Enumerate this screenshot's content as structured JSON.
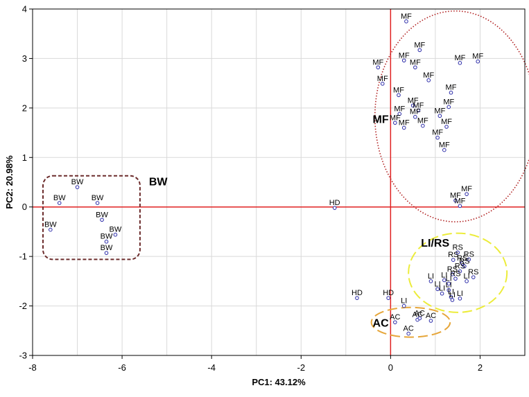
{
  "chart_data": {
    "type": "scatter",
    "xlabel": "PC1: 43.12%",
    "ylabel": "PC2: 20.98%",
    "xlim": [
      -8,
      3
    ],
    "ylim": [
      -3,
      4
    ],
    "xticks": [
      -8,
      -6,
      -4,
      -2,
      0,
      2
    ],
    "yticks": [
      -3,
      -2,
      -1,
      0,
      1,
      2,
      3,
      4
    ],
    "grid": true,
    "zero_lines_color": "#e02020",
    "marker_color": "#2a2aa8",
    "points": [
      {
        "label": "BW",
        "x": -7.0,
        "y": 0.4
      },
      {
        "label": "BW",
        "x": -7.4,
        "y": 0.08
      },
      {
        "label": "BW",
        "x": -6.55,
        "y": 0.08
      },
      {
        "label": "BW",
        "x": -6.45,
        "y": -0.26
      },
      {
        "label": "BW",
        "x": -7.6,
        "y": -0.46
      },
      {
        "label": "BW",
        "x": -6.15,
        "y": -0.56
      },
      {
        "label": "BW",
        "x": -6.35,
        "y": -0.7
      },
      {
        "label": "BW",
        "x": -6.35,
        "y": -0.93
      },
      {
        "label": "HD",
        "x": -1.25,
        "y": -0.02
      },
      {
        "label": "HD",
        "x": -0.75,
        "y": -1.84
      },
      {
        "label": "HD",
        "x": -0.05,
        "y": -1.84
      },
      {
        "label": "LI",
        "x": 0.3,
        "y": -2.0
      },
      {
        "label": "AC",
        "x": 0.1,
        "y": -2.33
      },
      {
        "label": "AC",
        "x": 0.6,
        "y": -2.28
      },
      {
        "label": "AC",
        "x": 0.65,
        "y": -2.25
      },
      {
        "label": "AC",
        "x": 0.9,
        "y": -2.3
      },
      {
        "label": "AC",
        "x": 0.4,
        "y": -2.56
      },
      {
        "label": "MF",
        "x": 0.35,
        "y": 3.75
      },
      {
        "label": "MF",
        "x": 0.65,
        "y": 3.17
      },
      {
        "label": "MF",
        "x": 0.3,
        "y": 2.96
      },
      {
        "label": "MF",
        "x": 0.55,
        "y": 2.82
      },
      {
        "label": "MF",
        "x": 1.55,
        "y": 2.91
      },
      {
        "label": "MF",
        "x": 1.95,
        "y": 2.94
      },
      {
        "label": "MF",
        "x": -0.28,
        "y": 2.82
      },
      {
        "label": "MF",
        "x": -0.18,
        "y": 2.49
      },
      {
        "label": "MF",
        "x": 0.85,
        "y": 2.56
      },
      {
        "label": "MF",
        "x": 0.18,
        "y": 2.26
      },
      {
        "label": "MF",
        "x": 1.35,
        "y": 2.31
      },
      {
        "label": "MF",
        "x": 1.3,
        "y": 2.02
      },
      {
        "label": "MF",
        "x": 0.5,
        "y": 2.05
      },
      {
        "label": "MF",
        "x": 0.62,
        "y": 1.95
      },
      {
        "label": "MF",
        "x": 0.2,
        "y": 1.88
      },
      {
        "label": "MF",
        "x": 0.55,
        "y": 1.82
      },
      {
        "label": "MF",
        "x": 1.1,
        "y": 1.84
      },
      {
        "label": "MF",
        "x": 0.1,
        "y": 1.7
      },
      {
        "label": "MF",
        "x": 0.3,
        "y": 1.6
      },
      {
        "label": "MF",
        "x": 0.72,
        "y": 1.64
      },
      {
        "label": "MF",
        "x": 1.25,
        "y": 1.62
      },
      {
        "label": "MF",
        "x": 1.05,
        "y": 1.4
      },
      {
        "label": "MF",
        "x": 1.2,
        "y": 1.15
      },
      {
        "label": "MF",
        "x": 1.7,
        "y": 0.26
      },
      {
        "label": "MF",
        "x": 1.45,
        "y": 0.13
      },
      {
        "label": "MF",
        "x": 1.55,
        "y": 0.02
      },
      {
        "label": "RS",
        "x": 1.5,
        "y": -0.92
      },
      {
        "label": "RS",
        "x": 1.4,
        "y": -1.07
      },
      {
        "label": "RS",
        "x": 1.75,
        "y": -1.06
      },
      {
        "label": "RS",
        "x": 1.6,
        "y": -1.14
      },
      {
        "label": "RS",
        "x": 1.65,
        "y": -1.2
      },
      {
        "label": "RS",
        "x": 1.55,
        "y": -1.3
      },
      {
        "label": "RS",
        "x": 1.85,
        "y": -1.42
      },
      {
        "label": "RS",
        "x": 1.38,
        "y": -1.36
      },
      {
        "label": "RS",
        "x": 1.45,
        "y": -1.45
      },
      {
        "label": "LI",
        "x": 0.9,
        "y": -1.5
      },
      {
        "label": "LI",
        "x": 1.2,
        "y": -1.48
      },
      {
        "label": "LI",
        "x": 1.3,
        "y": -1.55
      },
      {
        "label": "LI",
        "x": 1.7,
        "y": -1.5
      },
      {
        "label": "LI",
        "x": 1.05,
        "y": -1.66
      },
      {
        "label": "LI",
        "x": 1.3,
        "y": -1.68
      },
      {
        "label": "LI",
        "x": 1.15,
        "y": -1.75
      },
      {
        "label": "LI",
        "x": 1.35,
        "y": -1.82
      },
      {
        "label": "LI",
        "x": 1.55,
        "y": -1.85
      },
      {
        "label": "LI",
        "x": 1.38,
        "y": -1.88
      }
    ],
    "groups": [
      {
        "label": "MF",
        "shape": "ellipse",
        "style": "dotted",
        "color": "#b01e1e",
        "cx": 1.45,
        "cy": 1.83,
        "rx": 1.8,
        "ry": 2.13,
        "label_x": -0.4,
        "label_y": 1.7
      },
      {
        "label": "BW",
        "shape": "rect",
        "style": "dashed",
        "color": "#6b2b2b",
        "x0": -8.0,
        "x1": -5.6,
        "y0": -1.06,
        "y1": 0.63,
        "label_x": -5.4,
        "label_y": 0.44
      },
      {
        "label": "LI/RS",
        "shape": "ellipse",
        "style": "dashed",
        "color": "#ecec3a",
        "cx": 1.5,
        "cy": -1.33,
        "rx": 1.1,
        "ry": 0.8,
        "label_x": 0.68,
        "label_y": -0.8
      },
      {
        "label": "AC",
        "shape": "ellipse",
        "style": "dashed",
        "color": "#e6a63a",
        "cx": 0.45,
        "cy": -2.33,
        "rx": 0.88,
        "ry": 0.3,
        "label_x": -0.4,
        "label_y": -2.42
      }
    ]
  }
}
